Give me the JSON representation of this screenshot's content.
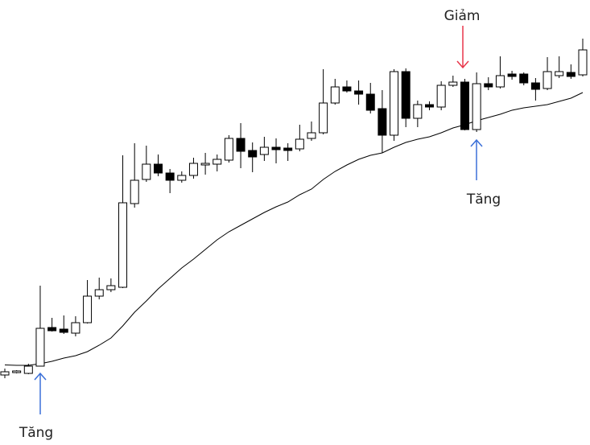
{
  "chart_data": {
    "type": "candlestick",
    "ylim": [
      0,
      553
    ],
    "up_color": "#ffffff",
    "down_color": "#000000",
    "ma_color": "#000000",
    "open": [
      87,
      90,
      89,
      98,
      146,
      144,
      139,
      152,
      185,
      193,
      196,
      300,
      330,
      349,
      338,
      329,
      335,
      348,
      349,
      354,
      381,
      366,
      361,
      370,
      369,
      368,
      381,
      388,
      425,
      445,
      440,
      436,
      418,
      385,
      464,
      406,
      423,
      420,
      447,
      451,
      392,
      449,
      445,
      461,
      461,
      450,
      443,
      459,
      463,
      460
    ],
    "high": [
      95,
      93,
      101,
      198,
      158,
      161,
      160,
      205,
      208,
      207,
      360,
      375,
      372,
      361,
      343,
      340,
      357,
      363,
      361,
      385,
      400,
      376,
      383,
      381,
      375,
      398,
      402,
      467,
      455,
      453,
      453,
      450,
      441,
      467,
      468,
      428,
      427,
      452,
      459,
      455,
      463,
      457,
      483,
      465,
      463,
      456,
      482,
      483,
      473,
      505
    ],
    "low": [
      83,
      89,
      88,
      98,
      141,
      138,
      135,
      151,
      181,
      190,
      195,
      295,
      327,
      334,
      313,
      326,
      331,
      336,
      340,
      351,
      344,
      339,
      353,
      350,
      353,
      365,
      378,
      386,
      423,
      438,
      423,
      412,
      363,
      378,
      395,
      395,
      416,
      416,
      445,
      391,
      389,
      441,
      443,
      454,
      447,
      428,
      441,
      456,
      455,
      458
    ],
    "close": [
      91,
      92,
      98,
      145,
      142,
      140,
      152,
      185,
      193,
      198,
      301,
      329,
      349,
      338,
      329,
      335,
      350,
      350,
      355,
      381,
      365,
      358,
      370,
      367,
      366,
      380,
      388,
      425,
      445,
      440,
      436,
      416,
      385,
      464,
      406,
      423,
      420,
      447,
      451,
      392,
      449,
      445,
      459,
      458,
      450,
      442,
      464,
      464,
      458,
      491
    ],
    "ma": [
      99.5,
      99,
      99,
      101,
      104,
      108,
      111,
      116,
      124,
      133,
      148,
      165,
      179,
      194,
      207,
      220,
      231,
      243,
      255,
      265,
      273,
      281,
      289,
      296,
      302,
      311,
      318,
      330,
      340,
      348,
      355,
      360,
      363,
      370,
      376,
      380,
      383,
      388,
      394,
      398,
      403,
      407,
      411,
      416,
      419,
      421,
      423,
      427,
      431,
      438
    ],
    "annotations": [
      "Giảm",
      "Tăng",
      "Tăng"
    ]
  }
}
